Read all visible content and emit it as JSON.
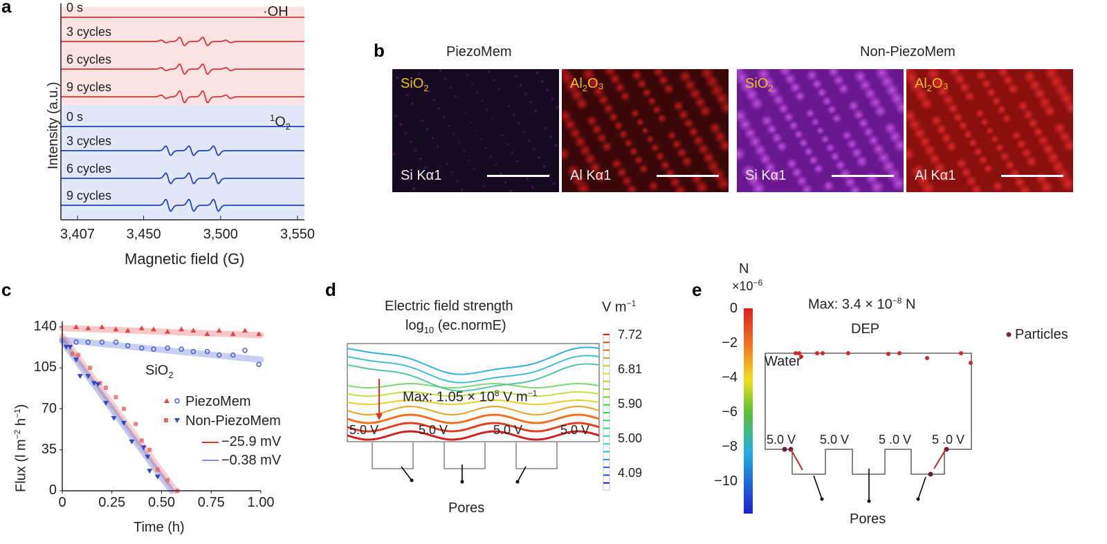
{
  "panels": {
    "a": "a",
    "b": "b",
    "c": "c",
    "d": "d",
    "e": "e"
  },
  "chart_data": [
    {
      "panel": "a",
      "type": "line",
      "xlabel": "Magnetic field (G)",
      "ylabel": "Intensity (a.u.)",
      "xlim": [
        3407,
        3550
      ],
      "xticks": [
        "3,407",
        "3,450",
        "3,500",
        "3,550"
      ],
      "xtick_values": [
        3407,
        3450,
        3500,
        3550
      ],
      "groups": [
        {
          "name": "·OH",
          "color": "#e03030",
          "shade": "#fbe3e3",
          "peaks": [
            3463,
            3475,
            3490,
            3505
          ],
          "peak_amp": [
            0.3,
            1,
            1,
            0.3
          ],
          "series": [
            {
              "name": "0 s",
              "amp": 0
            },
            {
              "name": "3 cycles",
              "amp": 0.7
            },
            {
              "name": "6 cycles",
              "amp": 0.85
            },
            {
              "name": "9 cycles",
              "amp": 1
            }
          ]
        },
        {
          "name": "1O2",
          "label_sup": "1",
          "label_main": "O",
          "label_sub": "2",
          "color": "#2040c8",
          "shade": "#e3e8f8",
          "peaks": [
            3466,
            3481,
            3497
          ],
          "peak_amp": [
            1,
            1,
            1
          ],
          "series": [
            {
              "name": "0 s",
              "amp": 0
            },
            {
              "name": "3 cycles",
              "amp": 0.8
            },
            {
              "name": "6 cycles",
              "amp": 0.9
            },
            {
              "name": "9 cycles",
              "amp": 1
            }
          ]
        }
      ]
    },
    {
      "panel": "c",
      "type": "scatter",
      "xlabel": "Time (h)",
      "ylabel_main": "Flux (l m",
      "ylabel_sup1": "−2",
      "ylabel_mid": " h",
      "ylabel_sup2": "−1",
      "ylabel_end": ")",
      "xlim": [
        0,
        1.0
      ],
      "ylim": [
        0,
        140
      ],
      "xticks": [
        "0",
        "0.25",
        "0.50",
        "0.75",
        "1.00"
      ],
      "yticks": [
        "0",
        "35",
        "70",
        "105",
        "140"
      ],
      "annotation": {
        "main": "SiO",
        "sub": "2"
      },
      "legend": {
        "markers": [
          "PiezoMem",
          "Non-PiezoMem"
        ],
        "lines": [
          "−25.9 mV",
          "−0.38 mV"
        ]
      },
      "series": [
        {
          "group": "PiezoMem",
          "zeta": "−25.9 mV",
          "marker": "triangle",
          "color": "#e04848",
          "x": [
            0.07,
            0.13,
            0.2,
            0.27,
            0.33,
            0.4,
            0.46,
            0.53,
            0.6,
            0.66,
            0.73,
            0.79,
            0.86,
            0.92,
            0.99
          ],
          "y": [
            140,
            139,
            140,
            138,
            137,
            139,
            138,
            136,
            138,
            137,
            134,
            137,
            134,
            137,
            134
          ],
          "fit": [
            [
              0,
              139
            ],
            [
              1,
              133
            ]
          ]
        },
        {
          "group": "PiezoMem",
          "zeta": "−0.38 mV",
          "marker": "circle",
          "color": "#4a5ed0",
          "x": [
            0.07,
            0.13,
            0.2,
            0.27,
            0.33,
            0.4,
            0.46,
            0.53,
            0.6,
            0.66,
            0.73,
            0.79,
            0.86,
            0.92,
            0.99
          ],
          "y": [
            127,
            127,
            127,
            127,
            124,
            122,
            121,
            122,
            121,
            119,
            119,
            116,
            116,
            120,
            108
          ],
          "fit": [
            [
              0,
              129
            ],
            [
              1,
              112
            ]
          ]
        },
        {
          "group": "Non-PiezoMem",
          "zeta": "−25.9 mV",
          "marker": "square",
          "color": "#e86060",
          "x": [
            0.05,
            0.08,
            0.14,
            0.19,
            0.22,
            0.27,
            0.31,
            0.37,
            0.4,
            0.44,
            0.48,
            0.53,
            0.58
          ],
          "y": [
            117,
            116,
            105,
            92,
            88,
            80,
            70,
            57,
            43,
            35,
            18,
            9,
            0
          ],
          "fit": [
            [
              0,
              132
            ],
            [
              0.57,
              0
            ]
          ]
        },
        {
          "group": "Non-PiezoMem",
          "zeta": "−0.38 mV",
          "marker": "triangle-down",
          "color": "#3048c8",
          "x": [
            0.02,
            0.04,
            0.07,
            0.09,
            0.13,
            0.16,
            0.18,
            0.22,
            0.26,
            0.31,
            0.35,
            0.41,
            0.43,
            0.44,
            0.48
          ],
          "y": [
            123,
            123,
            112,
            98,
            98,
            92,
            91,
            75,
            62,
            58,
            42,
            37,
            29,
            17,
            12
          ],
          "fit": [
            [
              0,
              128
            ],
            [
              0.55,
              0
            ]
          ]
        }
      ]
    }
  ],
  "panel_b": {
    "headers": [
      "PiezoMem",
      "Non-PiezoMem"
    ],
    "images": [
      {
        "el_main": "SiO",
        "el_sub": "2",
        "el_end": "",
        "line": "Si Kα1",
        "bg": "#160a20",
        "speck": "#5a1e70"
      },
      {
        "el_main": "Al",
        "el_sub": "2",
        "el_end": "O₃",
        "line": "Al Kα1",
        "bg": "#3a0808",
        "speck": "#c01818"
      },
      {
        "el_main": "SiO",
        "el_sub": "2",
        "el_end": "",
        "line": "Si Kα1",
        "bg": "#6a1890",
        "speck": "#c050e0"
      },
      {
        "el_main": "Al",
        "el_sub": "2",
        "el_end": "O₃",
        "line": "Al Kα1",
        "bg": "#8a1010",
        "speck": "#e02828"
      }
    ]
  },
  "panel_d": {
    "title1": "Electric field strength",
    "title2_main": "log",
    "title2_sub": "10",
    "title2_end": " (ec.normE)",
    "colorbar_unit_main": "V m",
    "colorbar_unit_sup": "−1",
    "colorbar_ticks": [
      "7.72",
      "6.81",
      "5.90",
      "5.00",
      "4.09"
    ],
    "max_main": "Max: 1.05 × 10",
    "max_sup": "8",
    "max_end": " V m",
    "max_sup2": "−1",
    "voltages": [
      "5.0 V",
      "5.0 V",
      "5.0 V",
      "5.0 V"
    ],
    "pores": "Pores"
  },
  "panel_e": {
    "colorbar_unit": "N",
    "colorbar_exp_main": "×10",
    "colorbar_exp_sup": "−6",
    "colorbar_ticks": [
      "0",
      "−2",
      "−4",
      "−6",
      "−8",
      "−10"
    ],
    "max_main": "Max: 3.4 × 10",
    "max_sup": "−8",
    "max_end": " N",
    "dep": "DEP",
    "water": "Water",
    "particles": "Particles",
    "voltages": [
      "5.0 V",
      "5.0 V",
      "5 .0 V",
      "5 .0 V"
    ],
    "pores": "Pores"
  }
}
